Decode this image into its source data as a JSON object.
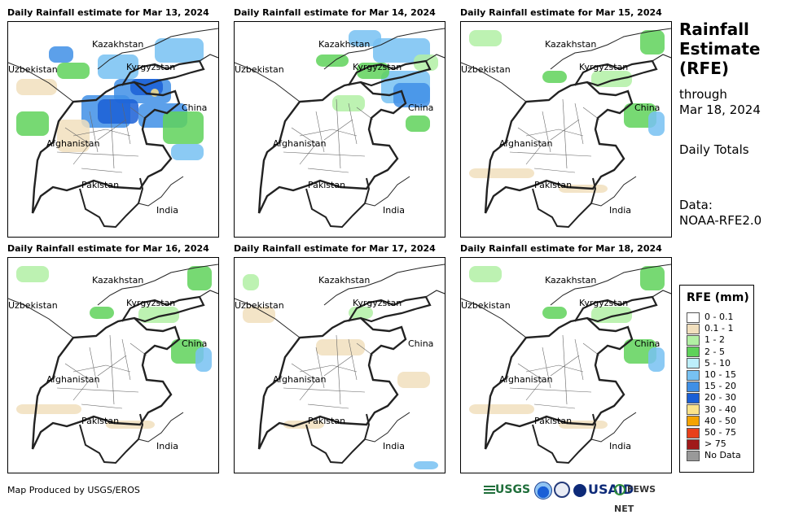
{
  "panels": [
    {
      "title": "Daily Rainfall estimate for Mar 13, 2024",
      "level": 5
    },
    {
      "title": "Daily Rainfall estimate for Mar 14, 2024",
      "level": 3
    },
    {
      "title": "Daily Rainfall estimate for Mar 15, 2024",
      "level": 2
    },
    {
      "title": "Daily Rainfall estimate for Mar 16, 2024",
      "level": 2
    },
    {
      "title": "Daily Rainfall estimate for Mar 17, 2024",
      "level": 1
    },
    {
      "title": "Daily Rainfall estimate for Mar 18, 2024",
      "level": 2
    }
  ],
  "map_labels": {
    "kazakhstan": "Kazakhstan",
    "uzbekistan": "Uzbekistan",
    "kyrgyzstan": "Kyrgyzstan",
    "china": "China",
    "afghanistan": "Afghanistan",
    "pakistan": "Pakistan",
    "india": "India"
  },
  "sidebar": {
    "title_line1": "Rainfall",
    "title_line2": "Estimate",
    "title_line3": "(RFE)",
    "through_label": "through",
    "through_date": "Mar 18, 2024",
    "totals_label": "Daily Totals",
    "data_label": "Data:",
    "data_source": "NOAA-RFE2.0"
  },
  "legend": {
    "title": "RFE (mm)",
    "items": [
      {
        "label": "0 - 0.1",
        "color": "#ffffff"
      },
      {
        "label": "0.1 - 1",
        "color": "#f1dfbd"
      },
      {
        "label": "1 - 2",
        "color": "#b2f0a4"
      },
      {
        "label": "2 - 5",
        "color": "#5fd25a"
      },
      {
        "label": "5 - 10",
        "color": "#bdeffb"
      },
      {
        "label": "10 - 15",
        "color": "#77c1f2"
      },
      {
        "label": "15 - 20",
        "color": "#3f8fe6"
      },
      {
        "label": "20 - 30",
        "color": "#1a5fd6"
      },
      {
        "label": "30 - 40",
        "color": "#fbe38a"
      },
      {
        "label": "40 - 50",
        "color": "#f5a300"
      },
      {
        "label": "50 - 75",
        "color": "#e8401a"
      },
      {
        "label": "> 75",
        "color": "#a01a1a"
      },
      {
        "label": "No Data",
        "color": "#999999"
      }
    ]
  },
  "footer": {
    "credit": "Map Produced by USGS/EROS",
    "logo_usgs": "USGS",
    "logo_usaid": "USAID",
    "logo_fewsnet": "FEWS NET"
  }
}
